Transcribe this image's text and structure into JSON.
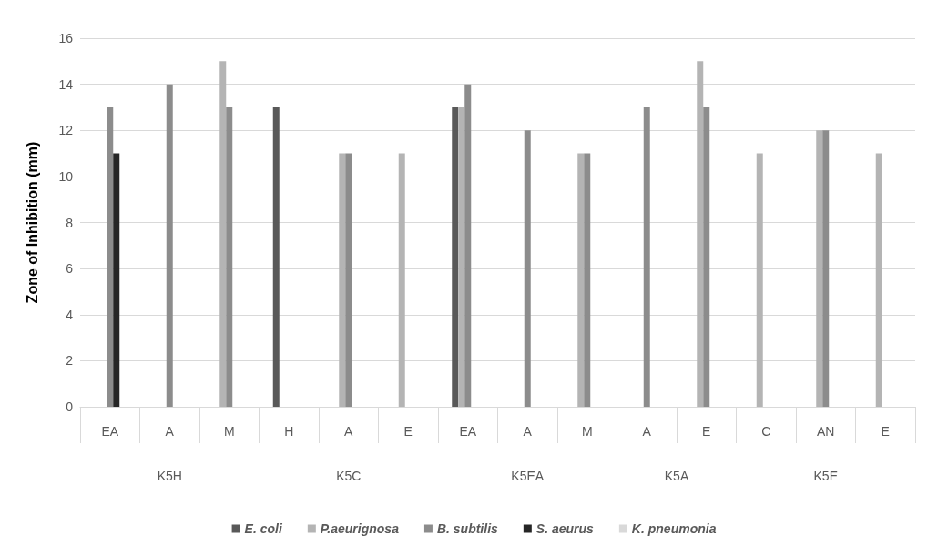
{
  "chart_data": {
    "type": "bar",
    "ylabel": "Zone of Inhibition (mm)",
    "categories": [
      "EA",
      "A",
      "M",
      "H",
      "A",
      "E",
      "EA",
      "A",
      "M",
      "A",
      "E",
      "C",
      "AN",
      "E"
    ],
    "series": [
      {
        "name": "E. coli",
        "color": "#595959",
        "values": [
          null,
          null,
          null,
          13,
          null,
          null,
          13,
          null,
          null,
          null,
          null,
          null,
          null,
          null
        ]
      },
      {
        "name": "P.aeurignosa",
        "color": "#b4b4b4",
        "values": [
          null,
          null,
          15,
          null,
          11,
          11,
          13,
          null,
          11,
          null,
          15,
          11,
          12,
          11
        ]
      },
      {
        "name": "B. subtilis",
        "color": "#8c8c8c",
        "values": [
          13,
          14,
          13,
          null,
          11,
          null,
          14,
          12,
          11,
          13,
          13,
          null,
          12,
          null
        ]
      },
      {
        "name": "S. aeurus",
        "color": "#262626",
        "values": [
          11,
          null,
          null,
          null,
          null,
          null,
          null,
          null,
          null,
          null,
          null,
          null,
          null,
          null
        ]
      },
      {
        "name": "K. pneumonia",
        "color": "#d9d9d9",
        "values": [
          null,
          null,
          null,
          null,
          null,
          null,
          null,
          null,
          null,
          null,
          null,
          null,
          null,
          null
        ]
      }
    ],
    "annotations": [
      "K5H",
      "K5C",
      "K5EA",
      "K5A",
      "K5E"
    ],
    "ylim": [
      0,
      16
    ],
    "yticks": [
      0,
      2,
      4,
      6,
      8,
      10,
      12,
      14,
      16
    ],
    "grid": "y",
    "legend": "bottom"
  }
}
